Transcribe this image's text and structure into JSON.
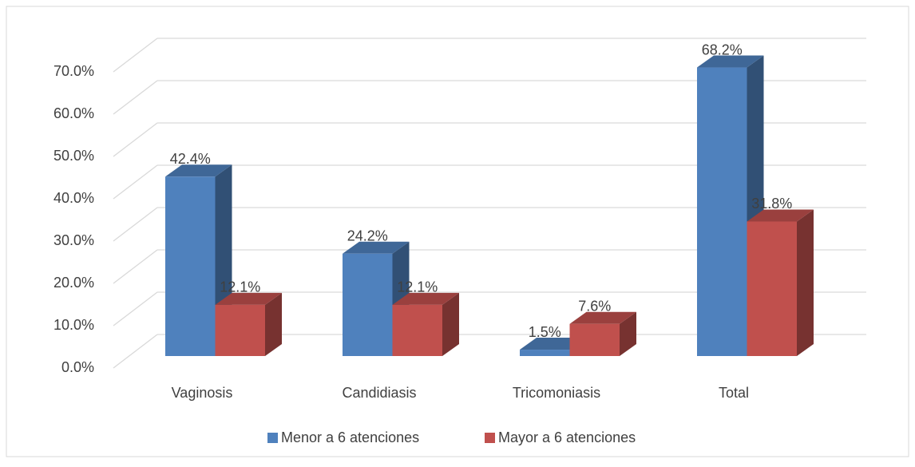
{
  "chart_data": {
    "type": "bar3d",
    "categories": [
      "Vaginosis",
      "Candidiasis",
      "Tricomoniasis",
      "Total"
    ],
    "series": [
      {
        "name": "Menor a 6 atenciones",
        "color": "#4f81bd",
        "values": [
          42.4,
          24.2,
          1.5,
          68.2
        ],
        "value_labels": [
          "42.4%",
          "24.2%",
          "1.5%",
          "68.2%"
        ]
      },
      {
        "name": "Mayor a 6 atenciones",
        "color": "#c0504d",
        "values": [
          12.1,
          12.1,
          7.6,
          31.8
        ],
        "value_labels": [
          "12.1%",
          "12.1%",
          "7.6%",
          "31.8%"
        ]
      }
    ],
    "ylim": [
      0,
      70
    ],
    "yticks": [
      {
        "value": 0,
        "label": "0.0%"
      },
      {
        "value": 10,
        "label": "10.0%"
      },
      {
        "value": 20,
        "label": "20.0%"
      },
      {
        "value": 30,
        "label": "30.0%"
      },
      {
        "value": 40,
        "label": "40.0%"
      },
      {
        "value": 50,
        "label": "50.0%"
      },
      {
        "value": 60,
        "label": "60.0%"
      },
      {
        "value": 70,
        "label": "70.0%"
      }
    ],
    "grid": true,
    "legend": "bottom"
  }
}
